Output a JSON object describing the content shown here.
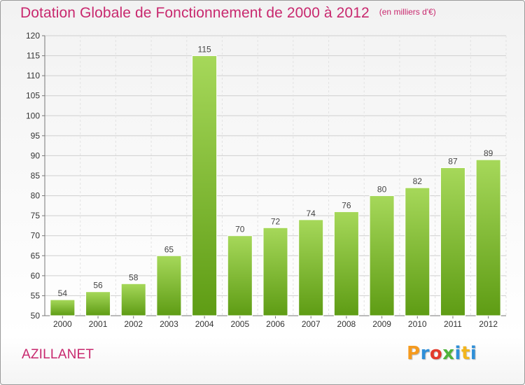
{
  "header": {
    "title": "Dotation Globale de Fonctionnement de 2000 à 2012",
    "unit_note": "(en milliers d'€)"
  },
  "footer": {
    "city": "AZILLANET",
    "brand": [
      "P",
      "r",
      "o",
      "x",
      "i",
      "t",
      "i"
    ]
  },
  "colors": {
    "title": "#c8286e",
    "bar_light": "#a6d85a",
    "bar_dark": "#5e9c14",
    "grid": "#cfcfcf"
  },
  "chart_data": {
    "type": "bar",
    "categories": [
      "2000",
      "2001",
      "2002",
      "2003",
      "2004",
      "2005",
      "2006",
      "2007",
      "2008",
      "2009",
      "2010",
      "2011",
      "2012"
    ],
    "values": [
      54,
      56,
      58,
      65,
      115,
      70,
      72,
      74,
      76,
      80,
      82,
      87,
      89
    ],
    "ylim": [
      50,
      120
    ],
    "yticks": [
      50,
      55,
      60,
      65,
      70,
      75,
      80,
      85,
      90,
      95,
      100,
      105,
      110,
      115,
      120
    ],
    "grid": true,
    "data_labels": true
  }
}
